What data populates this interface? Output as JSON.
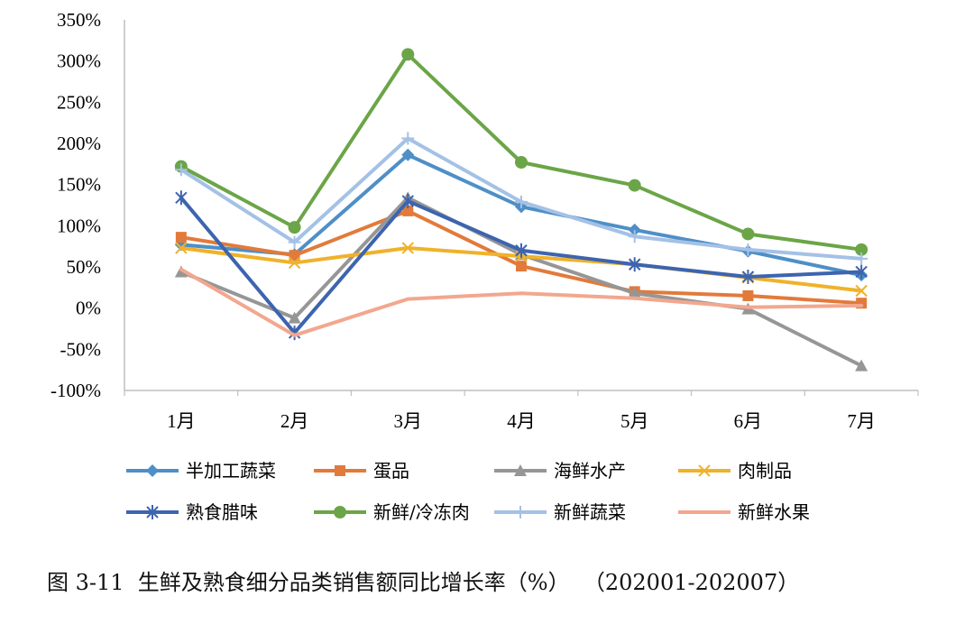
{
  "caption": "图 3-11  生鲜及熟食细分品类销售额同比增长率（%）  （202001-202007）",
  "chart_data": {
    "type": "line",
    "categories": [
      "1月",
      "2月",
      "3月",
      "4月",
      "5月",
      "6月",
      "7月"
    ],
    "ylim": [
      -100,
      350
    ],
    "yticks": [
      -100,
      -50,
      0,
      50,
      100,
      150,
      200,
      250,
      300,
      350
    ],
    "ytick_labels": [
      "-100%",
      "-50%",
      "0%",
      "50%",
      "100%",
      "150%",
      "200%",
      "250%",
      "300%",
      "350%"
    ],
    "grid": false,
    "legend_position": "bottom",
    "series": [
      {
        "name": "半加工蔬菜",
        "color": "#4E8FC7",
        "marker": "diamond",
        "values": [
          77,
          65,
          186,
          123,
          95,
          69,
          40
        ]
      },
      {
        "name": "蛋品",
        "color": "#E27A3B",
        "marker": "square",
        "values": [
          86,
          64,
          118,
          51,
          20,
          15,
          6
        ]
      },
      {
        "name": "海鲜水产",
        "color": "#969696",
        "marker": "triangle",
        "values": [
          44,
          -12,
          134,
          65,
          18,
          -1,
          -70
        ]
      },
      {
        "name": "肉制品",
        "color": "#EFB22B",
        "marker": "x",
        "values": [
          73,
          55,
          73,
          63,
          53,
          37,
          21
        ]
      },
      {
        "name": "熟食腊味",
        "color": "#3D64AF",
        "marker": "star",
        "values": [
          134,
          -30,
          130,
          70,
          53,
          38,
          44
        ]
      },
      {
        "name": "新鲜/冷冻肉",
        "color": "#6BA547",
        "marker": "circle",
        "values": [
          172,
          98,
          308,
          177,
          149,
          90,
          71
        ]
      },
      {
        "name": "新鲜蔬菜",
        "color": "#A4C1E6",
        "marker": "plus",
        "values": [
          168,
          80,
          206,
          129,
          87,
          71,
          60
        ]
      },
      {
        "name": "新鲜水果",
        "color": "#F2A78E",
        "marker": "none",
        "values": [
          47,
          -33,
          11,
          18,
          12,
          1,
          3
        ]
      }
    ]
  }
}
